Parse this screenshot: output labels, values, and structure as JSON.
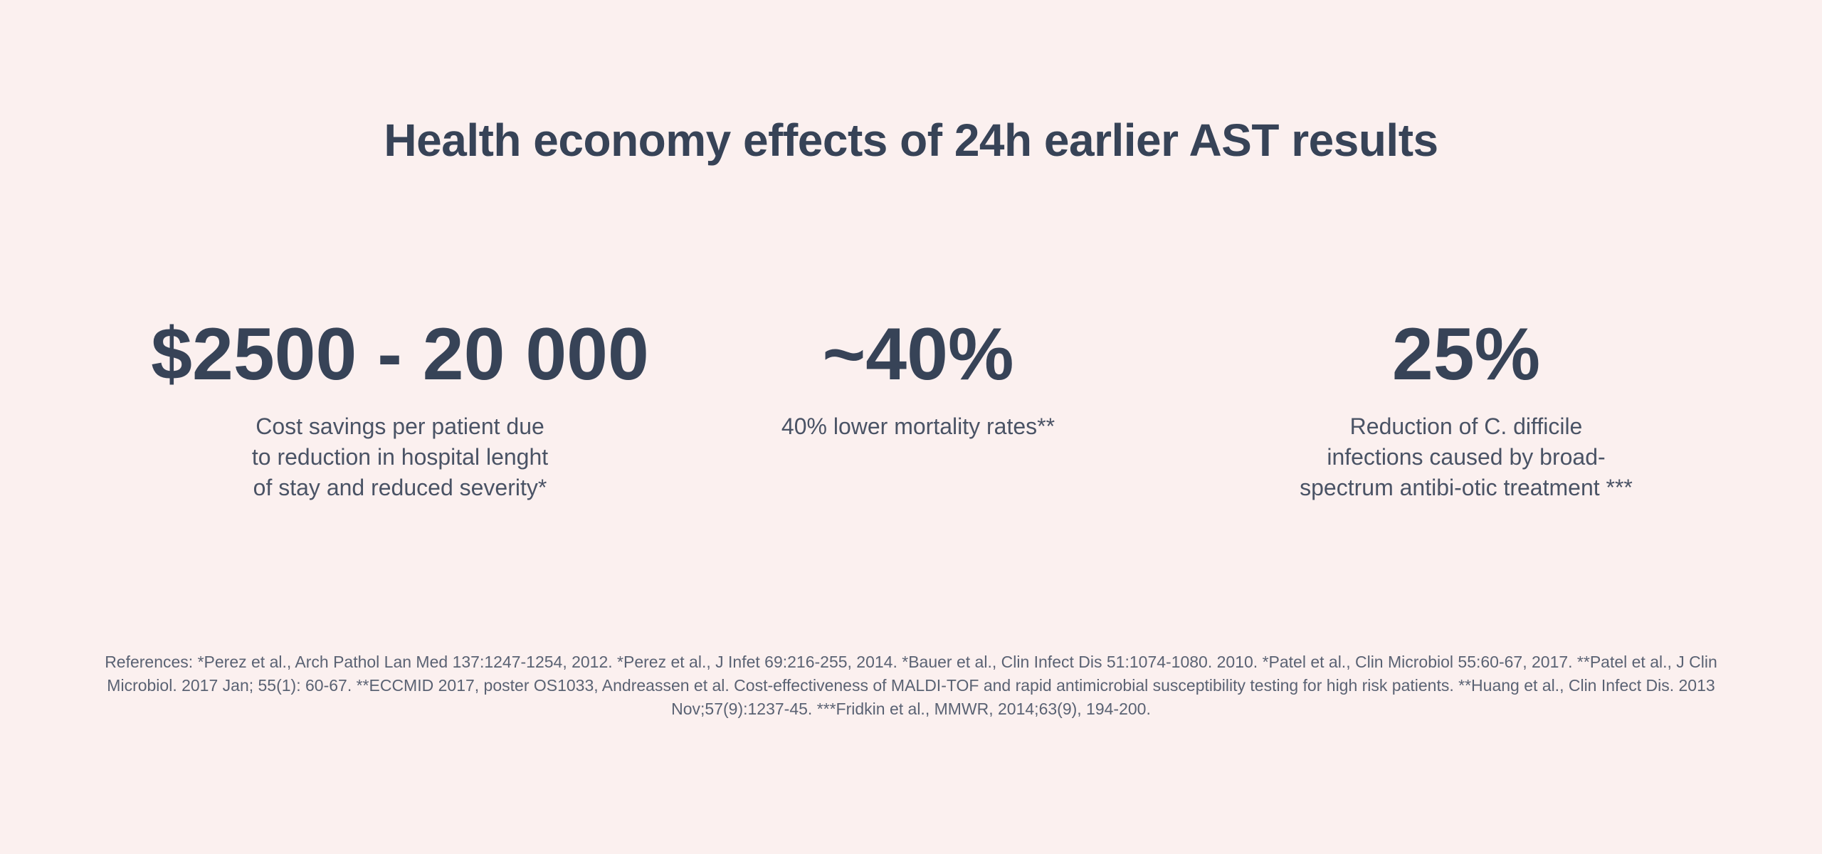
{
  "page": {
    "title": "Health economy effects of 24h earlier AST results"
  },
  "stats": [
    {
      "value": "$2500 - 20 000",
      "description": "Cost savings per patient due to reduction in hospital lenght of stay and reduced severity*"
    },
    {
      "value": "~40%",
      "description": "40% lower mortality rates**"
    },
    {
      "value": "25%",
      "description": "Reduction of C. difficile infections caused by broad-spectrum antibi-otic treatment ***"
    }
  ],
  "references": "References: *Perez et al., Arch Pathol Lan Med 137:1247-1254, 2012. *Perez et al., J Infet 69:216-255, 2014. *Bauer et al., Clin Infect Dis 51:1074-1080. 2010. *Patel et al., Clin Microbiol 55:60-67, 2017. **Patel et al., J Clin Microbiol. 2017 Jan; 55(1): 60-67. **ECCMID 2017, poster OS1033, Andreassen et al. Cost-effectiveness of MALDI-TOF and rapid antimicrobial susceptibility testing for high risk patients. **Huang et al., Clin Infect Dis. 2013 Nov;57(9):1237-45. ***Fridkin et al., MMWR, 2014;63(9), 194-200.",
  "colors": {
    "background": "#fbf0ef",
    "heading": "#374357",
    "body_text": "#4a5365"
  }
}
